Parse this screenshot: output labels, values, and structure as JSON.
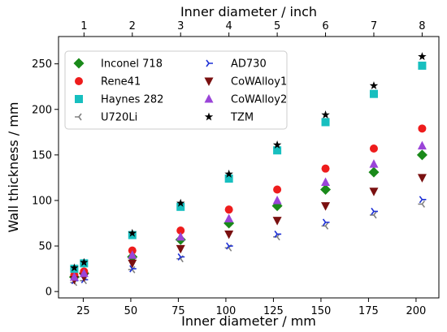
{
  "chart_data": {
    "type": "scatter",
    "xlabel": "Inner diameter / mm",
    "ylabel": "Wall thickness / mm",
    "top_xlabel": "Inner diameter / inch",
    "xlim": [
      12,
      212
    ],
    "ylim": [
      -7,
      280
    ],
    "x_ticks": [
      25,
      50,
      75,
      100,
      125,
      150,
      175,
      200
    ],
    "y_ticks": [
      0,
      50,
      100,
      150,
      200,
      250
    ],
    "top_x_ticks": [
      1,
      2,
      3,
      4,
      5,
      6,
      7,
      8
    ],
    "grid": false,
    "legend_placement": "top-left",
    "legend_columns": 2,
    "x_mm": [
      20.3,
      25.4,
      50.8,
      76.2,
      101.6,
      127.0,
      152.4,
      177.8,
      203.2
    ],
    "series": [
      {
        "name": "Inconel 718",
        "marker": "diamond",
        "color": "#1a8a1a",
        "values": [
          16,
          20,
          38,
          57,
          75,
          94,
          112,
          131,
          150
        ]
      },
      {
        "name": "Rene41",
        "marker": "circle",
        "color": "#ee1c1c",
        "values": [
          18,
          22,
          45,
          67,
          90,
          112,
          135,
          157,
          179
        ]
      },
      {
        "name": "Haynes 282",
        "marker": "square",
        "color": "#17bfbf",
        "values": [
          25,
          31,
          62,
          93,
          124,
          155,
          186,
          217,
          248
        ]
      },
      {
        "name": "U720Li",
        "marker": "tri_left",
        "color": "#808080",
        "values": [
          10,
          12,
          24,
          36,
          48,
          60,
          72,
          84,
          96
        ]
      },
      {
        "name": "AD730",
        "marker": "tri_right",
        "color": "#1c2fd6",
        "values": [
          12,
          13,
          25,
          38,
          50,
          63,
          76,
          88,
          101
        ]
      },
      {
        "name": "CoWAlloy1",
        "marker": "triangle_down",
        "color": "#7a1010",
        "values": [
          13,
          16,
          31,
          47,
          63,
          78,
          94,
          110,
          125
        ]
      },
      {
        "name": "CoWAlloy2",
        "marker": "triangle_up",
        "color": "#9a44d8",
        "values": [
          16,
          20,
          40,
          60,
          80,
          100,
          120,
          140,
          160
        ]
      },
      {
        "name": "TZM",
        "marker": "star",
        "color": "#000000",
        "values": [
          26,
          32,
          64,
          97,
          129,
          161,
          194,
          226,
          258
        ]
      }
    ]
  }
}
